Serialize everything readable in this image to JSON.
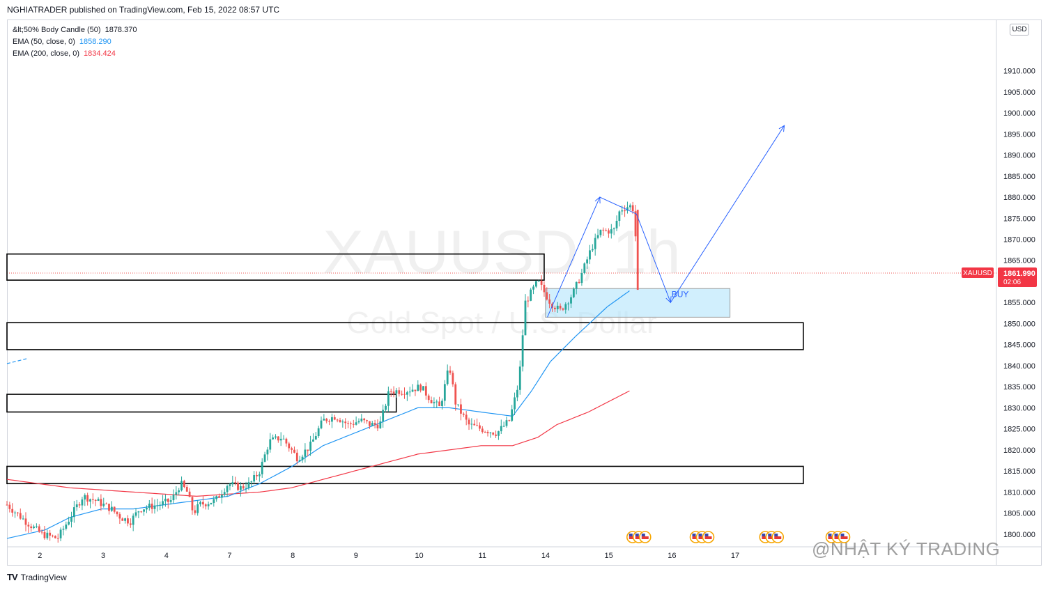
{
  "header": {
    "publisher_line": "NGHIATRADER published on TradingView.com, Feb 15, 2022 08:57 UTC"
  },
  "legend": {
    "indicator1_label": "&lt;50% Body Candle (50)",
    "indicator1_value": "1878.370",
    "ema50_label": "EMA (50, close, 0)",
    "ema50_value": "1858.290",
    "ema200_label": "EMA (200, close, 0)",
    "ema200_value": "1834.424"
  },
  "currency_button": "USD",
  "watermark_symbol": "XAUUSD, 1h",
  "watermark_name": "Gold Spot / U.S. Dollar",
  "footer": {
    "logo_text": "TV",
    "brand": "TradingView"
  },
  "overlay_watermark": "@NHẬT KÝ TRADING",
  "colors": {
    "candle_up": "#26a69a",
    "candle_down": "#ef5350",
    "ema50": "#2196f3",
    "ema200": "#f23645",
    "zone_fill": "#b3e5fc",
    "arrow": "#2962ff",
    "price_tag_bg": "#f23645"
  },
  "chart_data": {
    "type": "candlestick",
    "symbol": "XAUUSD",
    "timeframe": "1h",
    "ylim": [
      1797,
      1922
    ],
    "y_ticks": [
      1910,
      1905,
      1900,
      1895,
      1890,
      1885,
      1880,
      1875,
      1870,
      1865,
      1860,
      1855,
      1850,
      1845,
      1840,
      1835,
      1830,
      1825,
      1820,
      1815,
      1810,
      1805,
      1800
    ],
    "y_tick_labels": [
      "1910.000",
      "1905.000",
      "1900.000",
      "1895.000",
      "1890.000",
      "1885.000",
      "1880.000",
      "1875.000",
      "1870.000",
      "1865.000",
      "1860.000",
      "1855.000",
      "1850.000",
      "1845.000",
      "1840.000",
      "1835.000",
      "1830.000",
      "1825.000",
      "1820.000",
      "1815.000",
      "1810.000",
      "1805.000",
      "1800.000"
    ],
    "x_labels": [
      {
        "label": "2",
        "x": 0.5
      },
      {
        "label": "3",
        "x": 1.5
      },
      {
        "label": "4",
        "x": 2.5
      },
      {
        "label": "7",
        "x": 3.5
      },
      {
        "label": "8",
        "x": 4.5
      },
      {
        "label": "9",
        "x": 5.5
      },
      {
        "label": "10",
        "x": 6.5
      },
      {
        "label": "11",
        "x": 7.5
      },
      {
        "label": "14",
        "x": 8.5
      },
      {
        "label": "15",
        "x": 9.5
      },
      {
        "label": "16",
        "x": 10.5
      },
      {
        "label": "17",
        "x": 11.5
      }
    ],
    "last_price": {
      "symbol_label": "XAUUSD",
      "price": "1861.990",
      "countdown": "02:06",
      "value": 1861.99
    },
    "price_series_keypoints": [
      [
        0.0,
        1807
      ],
      [
        0.3,
        1803
      ],
      [
        0.55,
        1800
      ],
      [
        0.8,
        1799
      ],
      [
        1.0,
        1804
      ],
      [
        1.2,
        1809
      ],
      [
        1.4,
        1808
      ],
      [
        1.65,
        1806
      ],
      [
        1.8,
        1804
      ],
      [
        1.95,
        1803
      ],
      [
        2.1,
        1806
      ],
      [
        2.4,
        1807
      ],
      [
        2.6,
        1808
      ],
      [
        2.75,
        1812
      ],
      [
        2.85,
        1810
      ],
      [
        2.95,
        1805
      ],
      [
        3.05,
        1807
      ],
      [
        3.3,
        1808
      ],
      [
        3.5,
        1812
      ],
      [
        3.7,
        1811
      ],
      [
        3.85,
        1812
      ],
      [
        4.0,
        1815
      ],
      [
        4.15,
        1822
      ],
      [
        4.35,
        1823
      ],
      [
        4.6,
        1818
      ],
      [
        4.8,
        1821
      ],
      [
        5.0,
        1827
      ],
      [
        5.2,
        1828
      ],
      [
        5.4,
        1826
      ],
      [
        5.6,
        1827
      ],
      [
        5.75,
        1826
      ],
      [
        5.9,
        1826
      ],
      [
        6.05,
        1834
      ],
      [
        6.3,
        1834
      ],
      [
        6.55,
        1835
      ],
      [
        6.7,
        1832
      ],
      [
        6.85,
        1830
      ],
      [
        7.0,
        1840
      ],
      [
        7.1,
        1831
      ],
      [
        7.3,
        1826
      ],
      [
        7.5,
        1825
      ],
      [
        7.75,
        1824
      ],
      [
        7.95,
        1827
      ],
      [
        8.1,
        1836
      ],
      [
        8.2,
        1855
      ],
      [
        8.4,
        1860
      ],
      [
        8.6,
        1855
      ],
      [
        8.75,
        1853
      ],
      [
        8.95,
        1857
      ],
      [
        9.1,
        1862
      ],
      [
        9.25,
        1868
      ],
      [
        9.4,
        1872
      ],
      [
        9.6,
        1872
      ],
      [
        9.7,
        1877
      ],
      [
        9.85,
        1878
      ],
      [
        9.92,
        1877
      ],
      [
        9.98,
        1862
      ]
    ],
    "ema50_keypoints": [
      [
        0.0,
        1799
      ],
      [
        0.6,
        1801
      ],
      [
        1.0,
        1804
      ],
      [
        1.5,
        1806
      ],
      [
        2.0,
        1806
      ],
      [
        2.5,
        1807
      ],
      [
        3.0,
        1808
      ],
      [
        3.5,
        1809
      ],
      [
        4.0,
        1812
      ],
      [
        4.5,
        1816
      ],
      [
        5.0,
        1821
      ],
      [
        5.5,
        1824
      ],
      [
        6.0,
        1827
      ],
      [
        6.5,
        1830
      ],
      [
        7.0,
        1830
      ],
      [
        7.5,
        1829
      ],
      [
        8.0,
        1828
      ],
      [
        8.3,
        1834
      ],
      [
        8.6,
        1841
      ],
      [
        9.0,
        1847
      ],
      [
        9.5,
        1854
      ],
      [
        9.9,
        1858.3
      ]
    ],
    "ema200_keypoints": [
      [
        0.0,
        1813
      ],
      [
        1.0,
        1811
      ],
      [
        2.0,
        1810
      ],
      [
        3.0,
        1809
      ],
      [
        4.0,
        1810
      ],
      [
        4.5,
        1811
      ],
      [
        5.0,
        1813
      ],
      [
        6.0,
        1817
      ],
      [
        6.5,
        1819
      ],
      [
        7.0,
        1820
      ],
      [
        7.5,
        1821
      ],
      [
        8.0,
        1821
      ],
      [
        8.4,
        1823
      ],
      [
        8.7,
        1826
      ],
      [
        9.2,
        1829
      ],
      [
        9.9,
        1834.4
      ]
    ],
    "horizontal_levels": [
      {
        "top": 1866.5,
        "bottom": 1860.3,
        "x_end": 8.5
      },
      {
        "top": 1850.2,
        "bottom": 1843.8,
        "x_end": 12.6
      },
      {
        "top": 1833.2,
        "bottom": 1829.0,
        "x_end": 6.16
      },
      {
        "top": 1816.1,
        "bottom": 1812.0,
        "x_end": 12.6
      }
    ],
    "buy_zone": {
      "label": "BUY",
      "x_start": 8.52,
      "x_end": 11.44,
      "top": 1858.3,
      "bottom": 1851.5
    },
    "projection_path": [
      [
        8.55,
        1851.5
      ],
      [
        9.38,
        1880
      ],
      [
        9.96,
        1876
      ],
      [
        10.5,
        1855
      ],
      [
        12.3,
        1897
      ]
    ],
    "event_icon_groups": [
      9.7,
      10.7,
      11.8,
      12.85
    ]
  }
}
